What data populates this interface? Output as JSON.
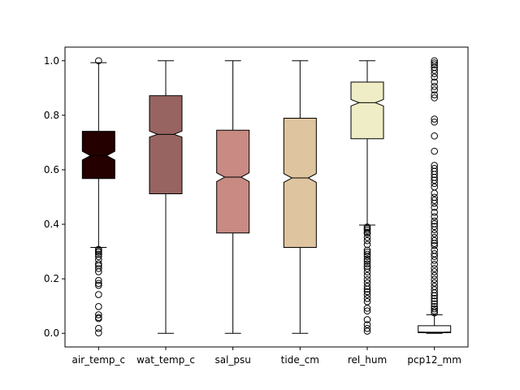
{
  "chart_data": {
    "type": "boxplot",
    "notched": true,
    "title": "",
    "xlabel": "",
    "ylabel": "",
    "ylim": [
      -0.05,
      1.05
    ],
    "yticks": [
      0.0,
      0.2,
      0.4,
      0.6,
      0.8,
      1.0
    ],
    "ytick_labels": [
      "0.0",
      "0.2",
      "0.4",
      "0.6",
      "0.8",
      "1.0"
    ],
    "categories": [
      "air_temp_c",
      "wat_temp_c",
      "sal_psu",
      "tide_cm",
      "rel_hum",
      "pcp12_mm"
    ],
    "boxes": [
      {
        "name": "air_temp_c",
        "color": "#240000",
        "whislo": 0.315,
        "q1": 0.568,
        "med": 0.652,
        "q3": 0.741,
        "whishi": 0.993,
        "notch_lo": 0.636,
        "notch_hi": 0.668,
        "fliers": [
          1.0,
          0.308,
          0.302,
          0.297,
          0.29,
          0.282,
          0.27,
          0.255,
          0.248,
          0.238,
          0.226,
          0.194,
          0.183,
          0.176,
          0.142,
          0.098,
          0.068,
          0.058,
          0.054,
          0.018,
          0.002
        ]
      },
      {
        "name": "wat_temp_c",
        "color": "#976461",
        "whislo": 0.0,
        "q1": 0.512,
        "med": 0.73,
        "q3": 0.872,
        "whishi": 1.0,
        "notch_lo": 0.72,
        "notch_hi": 0.742,
        "fliers": []
      },
      {
        "name": "sal_psu",
        "color": "#c88a82",
        "whislo": 0.0,
        "q1": 0.368,
        "med": 0.573,
        "q3": 0.745,
        "whishi": 1.0,
        "notch_lo": 0.557,
        "notch_hi": 0.589,
        "fliers": []
      },
      {
        "name": "tide_cm",
        "color": "#dfc59f",
        "whislo": 0.0,
        "q1": 0.315,
        "med": 0.57,
        "q3": 0.789,
        "whishi": 1.0,
        "notch_lo": 0.554,
        "notch_hi": 0.586,
        "fliers": []
      },
      {
        "name": "rel_hum",
        "color": "#efedc5",
        "whislo": 0.397,
        "q1": 0.714,
        "med": 0.846,
        "q3": 0.922,
        "whishi": 1.0,
        "notch_lo": 0.834,
        "notch_hi": 0.858,
        "fliers": [
          0.39,
          0.384,
          0.378,
          0.371,
          0.366,
          0.352,
          0.34,
          0.326,
          0.305,
          0.298,
          0.29,
          0.282,
          0.272,
          0.265,
          0.255,
          0.246,
          0.238,
          0.225,
          0.212,
          0.197,
          0.185,
          0.172,
          0.162,
          0.153,
          0.142,
          0.128,
          0.116,
          0.092,
          0.082,
          0.05,
          0.032,
          0.018,
          0.008
        ]
      },
      {
        "name": "pcp12_mm",
        "color": "#ffffff",
        "whislo": 0.0,
        "q1": 0.002,
        "med": 0.004,
        "q3": 0.028,
        "whishi": 0.068,
        "notch_lo": 0.003,
        "notch_hi": 0.005,
        "fliers": [
          1.0,
          0.992,
          0.985,
          0.976,
          0.965,
          0.953,
          0.94,
          0.922,
          0.906,
          0.893,
          0.875,
          0.864,
          0.786,
          0.775,
          0.724,
          0.668,
          0.616,
          0.605,
          0.594,
          0.583,
          0.572,
          0.562,
          0.55,
          0.537,
          0.514,
          0.499,
          0.488,
          0.477,
          0.462,
          0.444,
          0.428,
          0.412,
          0.402,
          0.392,
          0.38,
          0.366,
          0.352,
          0.34,
          0.33,
          0.322,
          0.305,
          0.292,
          0.282,
          0.268,
          0.253,
          0.238,
          0.226,
          0.212,
          0.198,
          0.185,
          0.172,
          0.16,
          0.148,
          0.138,
          0.128,
          0.118,
          0.108,
          0.098,
          0.09,
          0.082,
          0.075
        ]
      }
    ]
  }
}
